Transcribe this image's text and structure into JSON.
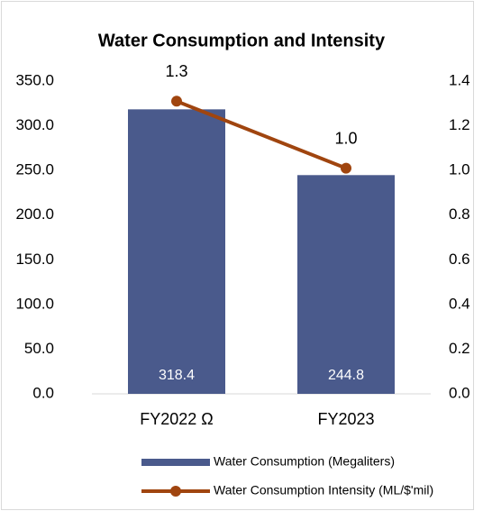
{
  "chart_data": {
    "type": "bar",
    "title": "Water Consumption and Intensity",
    "categories": [
      "FY2022 Ω",
      "FY2023"
    ],
    "series": [
      {
        "name": "Water Consumption (Megaliters)",
        "type": "bar",
        "color": "#4a5a8c",
        "values": [
          318.4,
          244.8
        ],
        "axis": "y"
      },
      {
        "name": "Water Consumption Intensity (ML/$'mil)",
        "type": "line",
        "color": "#a0450f",
        "values": [
          1.31,
          1.01
        ],
        "value_labels": [
          "1.3",
          "1.0"
        ],
        "axis": "y2"
      }
    ],
    "ylim": [
      0,
      350
    ],
    "yticks": [
      {
        "value": 0,
        "label": "0.0"
      },
      {
        "value": 50,
        "label": "50.0"
      },
      {
        "value": 100,
        "label": "100.0"
      },
      {
        "value": 150,
        "label": "150.0"
      },
      {
        "value": 200,
        "label": "200.0"
      },
      {
        "value": 250,
        "label": "250.0"
      },
      {
        "value": 300,
        "label": "300.0"
      },
      {
        "value": 350,
        "label": "350.0"
      }
    ],
    "y2lim": [
      0,
      1.4
    ],
    "y2ticks": [
      {
        "value": 0,
        "label": "0.0"
      },
      0.2,
      0.4,
      0.6,
      0.8,
      {
        "value": 1,
        "label": "1.0"
      },
      1.2,
      1.4
    ],
    "grid": false,
    "legend": "bottom"
  }
}
